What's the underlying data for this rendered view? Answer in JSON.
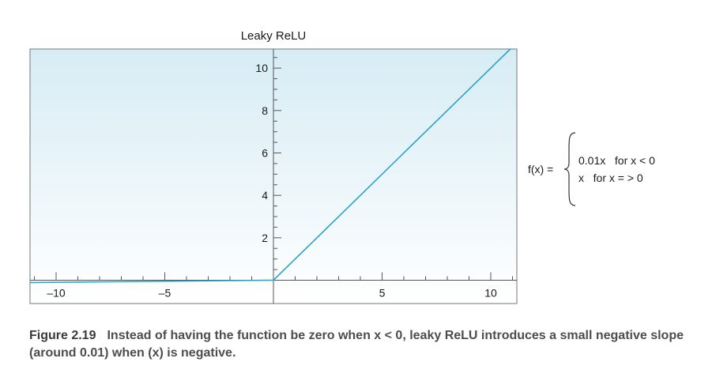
{
  "chart_data": {
    "type": "line",
    "title": "Leaky ReLU",
    "xlabel": "",
    "ylabel": "",
    "xlim": [
      -11.2,
      11.2
    ],
    "ylim": [
      -1.1,
      10.9
    ],
    "x_tick_labels": [
      "–10",
      "–5",
      "5",
      "10"
    ],
    "x_tick_values": [
      -10,
      -5,
      5,
      10
    ],
    "y_tick_labels": [
      "2",
      "4",
      "6",
      "8",
      "10"
    ],
    "y_tick_values": [
      2,
      4,
      6,
      8,
      10
    ],
    "grid": false,
    "series": [
      {
        "x": [
          -11.2,
          0,
          10.9
        ],
        "y": [
          -0.112,
          0,
          10.9
        ],
        "color": "#2aa3c9"
      }
    ]
  },
  "formula": {
    "lhs": "f(x) =",
    "case1": "0.01x   for x < 0",
    "case2": "x   for x = > 0"
  },
  "caption": {
    "figure_number": "Figure 2.19",
    "text": "Instead of having the function be zero when x < 0, leaky ReLU introduces a small negative slope (around 0.01) when (x) is negative."
  },
  "colors": {
    "line": "#2aa3c9",
    "plot_bg_top": "#d9eef5",
    "plot_bg_bottom": "#ffffff"
  }
}
